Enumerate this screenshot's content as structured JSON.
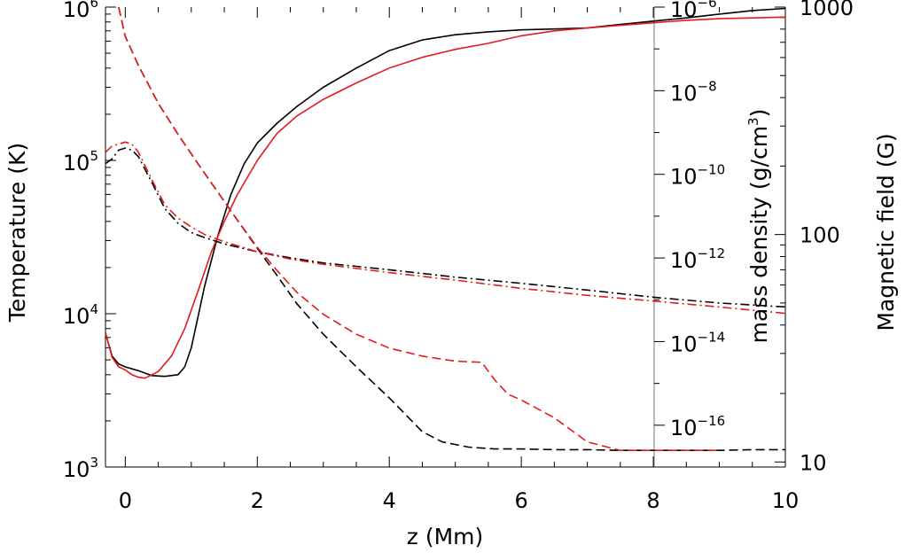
{
  "chart_data": {
    "type": "line",
    "xlabel": "z (Mm)",
    "ylabel_left": "Temperature (K)",
    "ylabel_middle": "mass density (g/cm",
    "ylabel_middle_exp": "3",
    "ylabel_middle_close": ")",
    "ylabel_right": "Magnetic field (G)",
    "xlim": [
      -0.3,
      10
    ],
    "xticks": [
      "0",
      "2",
      "4",
      "6",
      "8",
      "10"
    ],
    "temperature_axis": {
      "scale": "log",
      "lim": [
        1000,
        1000000
      ],
      "ticks": [
        {
          "value": 1000,
          "base": "10",
          "exp": "3"
        },
        {
          "value": 10000,
          "base": "10",
          "exp": "4"
        },
        {
          "value": 100000,
          "base": "10",
          "exp": "5"
        },
        {
          "value": 1000000,
          "base": "10",
          "exp": "6"
        }
      ]
    },
    "density_axis": {
      "scale": "log",
      "lim": [
        1e-17,
        1e-06
      ],
      "ticks": [
        {
          "value": 1e-16,
          "base": "10",
          "exp": "−16"
        },
        {
          "value": 1e-14,
          "base": "10",
          "exp": "−14"
        },
        {
          "value": 1e-12,
          "base": "10",
          "exp": "−12"
        },
        {
          "value": 1e-10,
          "base": "10",
          "exp": "−10"
        },
        {
          "value": 1e-08,
          "base": "10",
          "exp": "−8"
        },
        {
          "value": 1e-06,
          "base": "10",
          "exp": "−6"
        }
      ]
    },
    "field_axis": {
      "scale": "log",
      "lim": [
        9.5,
        1000
      ],
      "ticks": [
        {
          "value": 10,
          "label": "10"
        },
        {
          "value": 100,
          "label": "100"
        },
        {
          "value": 1000,
          "label": "1000"
        }
      ]
    },
    "series": [
      {
        "color": "#000000",
        "dash": "solid",
        "axis": "temperature",
        "x": [
          -0.3,
          -0.2,
          -0.1,
          0,
          0.2,
          0.4,
          0.6,
          0.8,
          0.9,
          1.0,
          1.1,
          1.2,
          1.4,
          1.6,
          1.8,
          2.0,
          2.3,
          2.6,
          3.0,
          3.5,
          4.0,
          4.5,
          5.0,
          5.5,
          6.0,
          6.5,
          7.0,
          7.5,
          8.0,
          8.5,
          9.0,
          9.5,
          10.0
        ],
        "y": [
          7500,
          5300,
          4700,
          4500,
          4250,
          3950,
          3900,
          4000,
          4500,
          6000,
          9500,
          15000,
          32000,
          60000,
          95000,
          130000,
          175000,
          225000,
          300000,
          400000,
          520000,
          610000,
          660000,
          690000,
          710000,
          720000,
          730000,
          770000,
          810000,
          850000,
          900000,
          950000,
          980000
        ]
      },
      {
        "color": "#e41a1c",
        "dash": "solid",
        "axis": "temperature",
        "x": [
          -0.3,
          -0.2,
          -0.1,
          0,
          0.1,
          0.2,
          0.3,
          0.5,
          0.7,
          0.9,
          1.1,
          1.3,
          1.5,
          1.7,
          2.0,
          2.3,
          2.6,
          3.0,
          3.5,
          4.0,
          4.5,
          5.0,
          5.5,
          6.0,
          6.5,
          7.0,
          7.5,
          8.0,
          8.5,
          9.0,
          9.5,
          10.0
        ],
        "y": [
          7500,
          5200,
          4500,
          4300,
          4000,
          3850,
          3800,
          4200,
          5300,
          8000,
          14000,
          25000,
          40000,
          60000,
          100000,
          150000,
          195000,
          250000,
          320000,
          400000,
          470000,
          530000,
          580000,
          650000,
          700000,
          730000,
          760000,
          790000,
          820000,
          840000,
          850000,
          860000
        ]
      },
      {
        "color": "#000000",
        "dash": "dashed",
        "axis": "density",
        "x": [
          -0.1,
          0,
          0.2,
          0.5,
          0.8,
          1.1,
          1.4,
          1.7,
          2.0,
          2.3,
          2.6,
          3.0,
          3.5,
          4.0,
          4.5,
          4.8,
          5.2,
          5.6,
          6.0,
          6.5,
          7.0,
          7.5,
          8.0,
          8.5,
          9.0,
          9.5,
          10.0
        ],
        "y": [
          1e-06,
          2e-07,
          4e-08,
          5e-09,
          9e-10,
          1.8e-10,
          3.8e-11,
          8e-12,
          1.7e-12,
          3.8e-13,
          8e-14,
          1.5e-14,
          2.5e-15,
          4.5e-16,
          7e-17,
          4e-17,
          3e-17,
          2.7e-17,
          2.7e-17,
          2.6e-17,
          2.6e-17,
          2.5e-17,
          2.5e-17,
          2.5e-17,
          2.5e-17,
          2.6e-17,
          2.6e-17
        ]
      },
      {
        "color": "#e41a1c",
        "dash": "dashed",
        "axis": "density",
        "x": [
          -0.1,
          0,
          0.2,
          0.5,
          0.8,
          1.1,
          1.4,
          1.7,
          2.0,
          2.3,
          2.6,
          3.0,
          3.5,
          4.0,
          4.5,
          5.0,
          5.2,
          5.4,
          5.6,
          5.8,
          6.0,
          6.5,
          7.0,
          7.5,
          8.0,
          8.5,
          9.0
        ],
        "y": [
          1e-06,
          2e-07,
          4e-08,
          5e-09,
          9e-10,
          1.8e-10,
          3.8e-11,
          8e-12,
          1.8e-12,
          5e-13,
          1.5e-13,
          4.5e-14,
          1.5e-14,
          7e-15,
          4.5e-15,
          3.4e-15,
          3.3e-15,
          3.2e-15,
          1.2e-15,
          5.5e-16,
          4e-16,
          1.5e-16,
          4e-17,
          2.5e-17,
          2.5e-17,
          2.5e-17,
          2.5e-17
        ]
      },
      {
        "color": "#000000",
        "dash": "dashdot",
        "axis": "field",
        "x": [
          -0.3,
          -0.2,
          -0.1,
          0,
          0.1,
          0.2,
          0.4,
          0.6,
          0.8,
          1.0,
          1.2,
          1.5,
          2.0,
          2.5,
          3.0,
          4.0,
          5.0,
          6.0,
          7.0,
          8.0,
          9.0,
          10.0
        ],
        "y": [
          205,
          215,
          235,
          240,
          235,
          220,
          170,
          130,
          112,
          102,
          97,
          91,
          84,
          79,
          75,
          70,
          65,
          61,
          57,
          53,
          50,
          48
        ]
      },
      {
        "color": "#e41a1c",
        "dash": "dashdot",
        "axis": "field",
        "x": [
          -0.3,
          -0.2,
          -0.1,
          0,
          0.1,
          0.2,
          0.4,
          0.6,
          0.8,
          1.0,
          1.2,
          1.5,
          2.0,
          2.5,
          3.0,
          4.0,
          5.0,
          6.0,
          7.0,
          8.0,
          9.0,
          10.0
        ],
        "y": [
          230,
          245,
          250,
          255,
          250,
          230,
          175,
          135,
          118,
          108,
          100,
          93,
          84,
          78,
          74,
          68,
          63,
          58,
          54,
          51,
          48,
          45
        ]
      }
    ]
  }
}
